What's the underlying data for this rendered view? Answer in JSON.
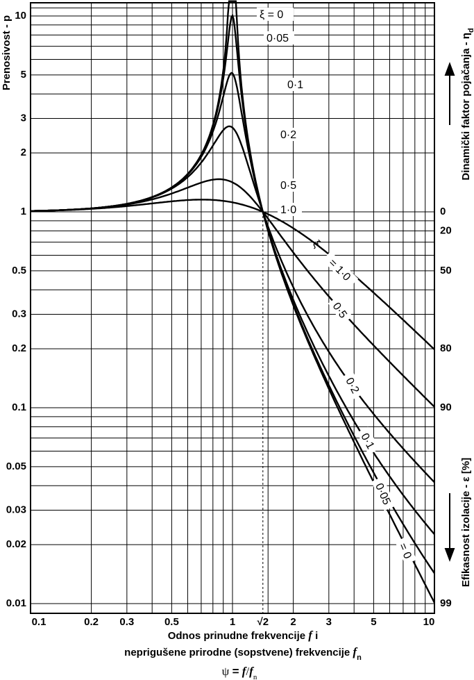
{
  "chart_data": {
    "type": "line",
    "xscale": "log",
    "yscale": "log",
    "xlim": [
      0.1,
      10
    ],
    "ylim": [
      0.01,
      12
    ],
    "grid": true,
    "x_ticks": [
      "0.1",
      "0.2",
      "0.3",
      "0.5",
      "1",
      "√2",
      "2",
      "3",
      "5",
      "10"
    ],
    "y_ticks": [
      "10",
      "5",
      "3",
      "2",
      "1",
      "0.5",
      "0.3",
      "0.2",
      "0.1",
      "0.05",
      "0.03",
      "0.02",
      "0.01"
    ],
    "right_ticks": [
      "0",
      "20",
      "50",
      "80",
      "90",
      "99"
    ],
    "ylabel": "Prenosivost - p",
    "right_label_top": "Dinamički faktor pojačanja - η",
    "right_label_top_sub": "d",
    "right_label_bottom": "Efikasnost izolacije - ε [%]",
    "xlabel_line1": "Odnos prinudne frekvencije",
    "xlabel_line1_var": "f",
    "xlabel_line1_end": "i",
    "xlabel_line2": "neprigušene prirodne (sopstvene) frekvencije",
    "xlabel_line2_var": "f",
    "xlabel_line2_sub": "n",
    "formula": {
      "lhs": "ψ",
      "eq": "=",
      "num": "f",
      "slash": "/",
      "den": "f",
      "den_sub": "n"
    },
    "series": [
      {
        "name": "ξ = 0",
        "damping": 0,
        "x": [
          0.1,
          0.2,
          0.3,
          0.5,
          0.7,
          0.8,
          0.9,
          0.95,
          1.414,
          2,
          3,
          5,
          10
        ],
        "y": [
          1.01,
          1.04,
          1.1,
          1.33,
          1.96,
          2.78,
          5.26,
          10.3,
          1.0,
          0.333,
          0.125,
          0.0417,
          0.0101
        ]
      },
      {
        "name": "0·05",
        "damping": 0.05,
        "x": [
          0.1,
          0.2,
          0.3,
          0.5,
          0.7,
          0.8,
          0.9,
          1,
          1.414,
          2,
          3,
          5,
          10
        ],
        "y": [
          1.01,
          1.04,
          1.1,
          1.33,
          1.95,
          2.74,
          4.9,
          10.05,
          1.0,
          0.34,
          0.133,
          0.052,
          0.0149
        ]
      },
      {
        "name": "0·1",
        "damping": 0.1,
        "x": [
          0.1,
          0.2,
          0.3,
          0.5,
          0.7,
          0.8,
          0.9,
          1,
          1.414,
          2,
          3,
          5,
          10
        ],
        "y": [
          1.01,
          1.04,
          1.1,
          1.33,
          1.92,
          2.6,
          4.0,
          5.1,
          1.0,
          0.356,
          0.155,
          0.0695,
          0.0225
        ]
      },
      {
        "name": "0·2",
        "damping": 0.2,
        "x": [
          0.1,
          0.2,
          0.3,
          0.5,
          0.7,
          0.8,
          0.9,
          1,
          1.414,
          2,
          3,
          5,
          10
        ],
        "y": [
          1.01,
          1.04,
          1.1,
          1.32,
          1.82,
          2.21,
          2.6,
          2.69,
          1.0,
          0.412,
          0.21,
          0.106,
          0.0414
        ]
      },
      {
        "name": "0·5",
        "damping": 0.5,
        "x": [
          0.1,
          0.2,
          0.3,
          0.5,
          0.7,
          0.8,
          0.9,
          1,
          1.414,
          2,
          3,
          5,
          10
        ],
        "y": [
          1.01,
          1.04,
          1.09,
          1.24,
          1.39,
          1.44,
          1.45,
          1.41,
          1.0,
          0.6,
          0.367,
          0.206,
          0.101
        ]
      },
      {
        "name": "1·0",
        "damping": 1.0,
        "x": [
          0.1,
          0.2,
          0.3,
          0.5,
          0.7,
          0.8,
          0.9,
          1,
          1.414,
          2,
          3,
          5,
          10
        ],
        "y": [
          1.01,
          1.03,
          1.07,
          1.12,
          1.15,
          1.14,
          1.13,
          1.12,
          1.0,
          0.825,
          0.62,
          0.4,
          0.2
        ]
      }
    ],
    "curve_labels": {
      "top": [
        "ξ = 0",
        "0·05",
        "0·1",
        "0·2",
        "0·5",
        "1·0"
      ],
      "bottom_prefix": "ξ",
      "bottom": [
        "= 1·0",
        "0·5",
        "0·2",
        "0·1",
        "0·05",
        "= 0"
      ]
    }
  }
}
